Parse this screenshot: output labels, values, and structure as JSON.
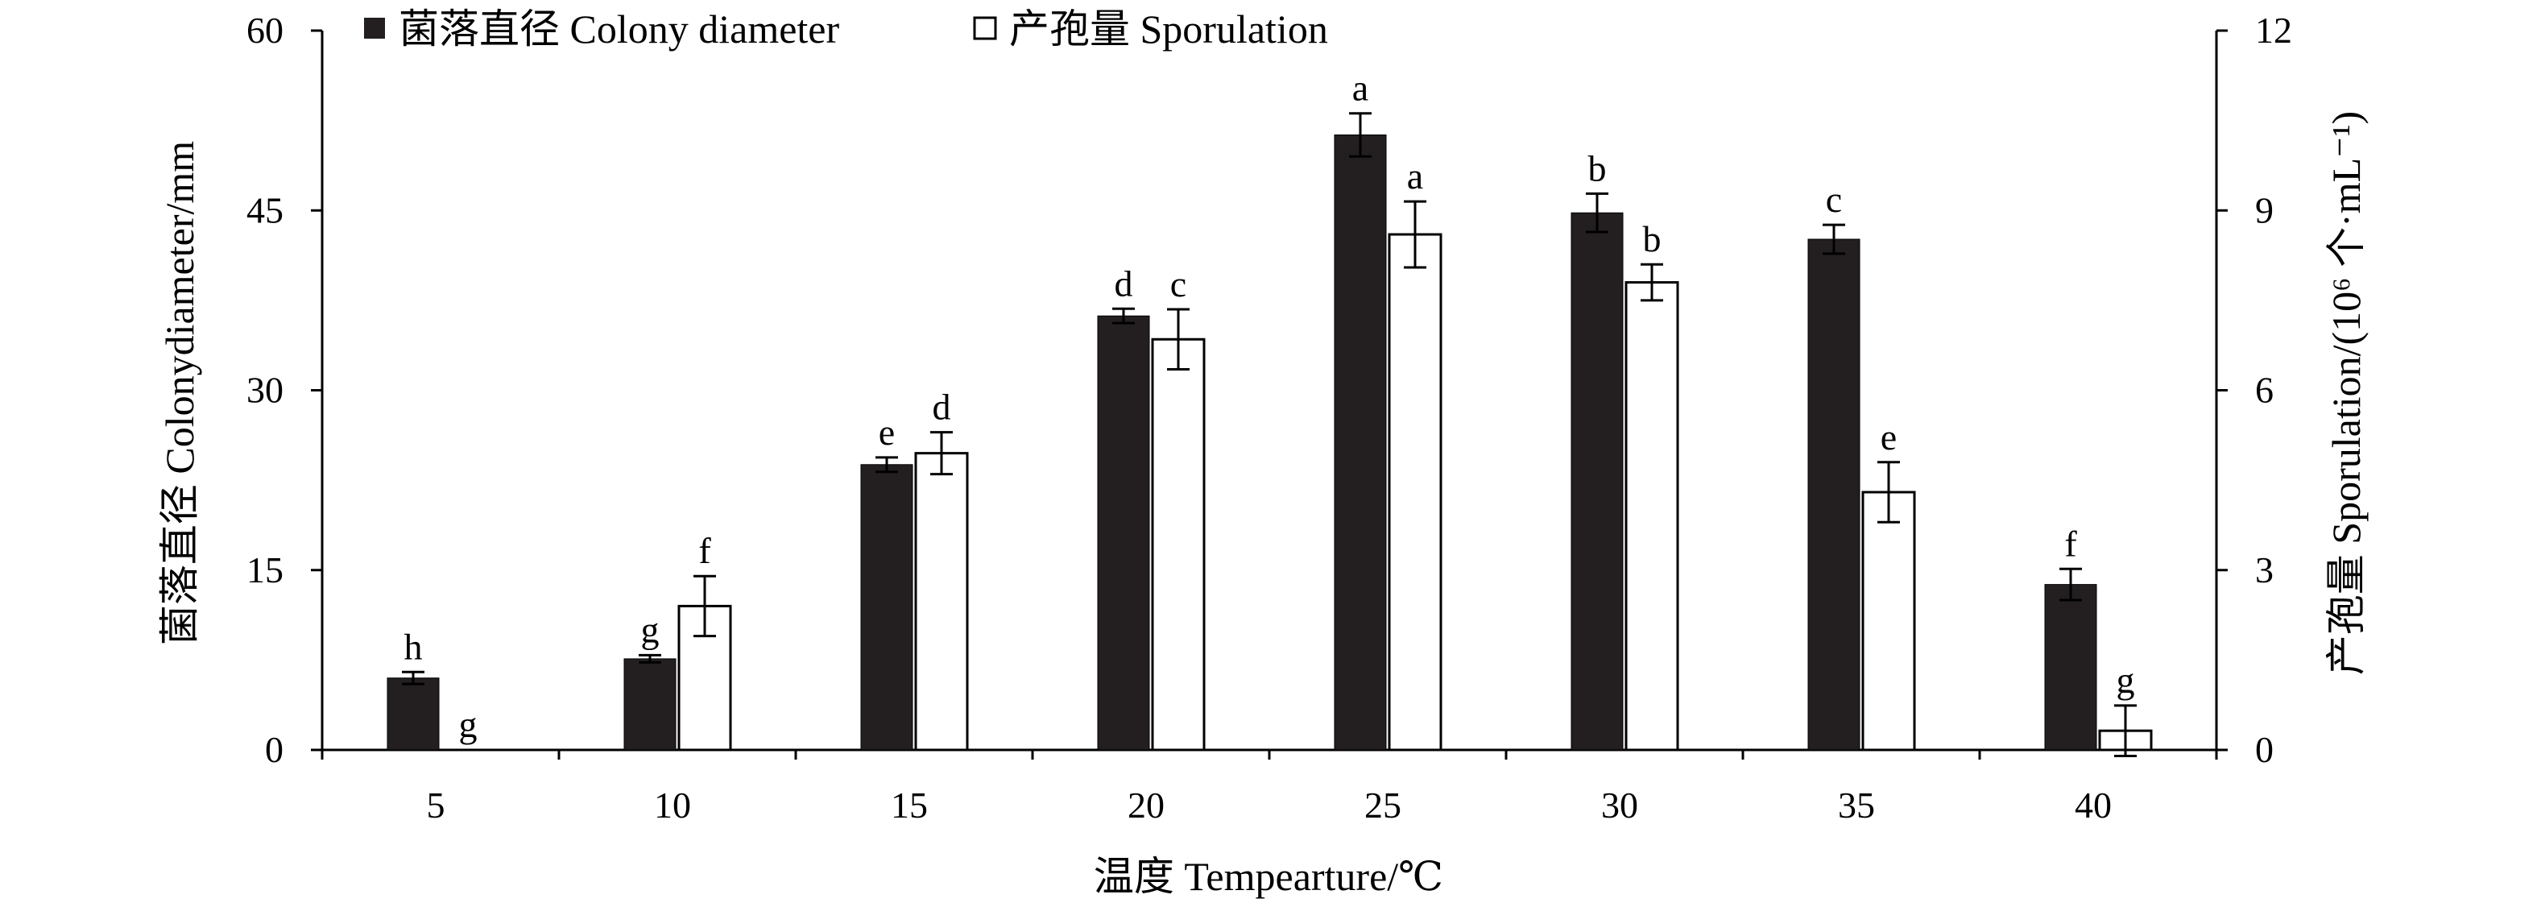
{
  "chart_data": {
    "type": "bar",
    "categories": [
      "5",
      "10",
      "15",
      "20",
      "25",
      "30",
      "35",
      "40"
    ],
    "xlabel": "温度 Tempearture/℃",
    "ylabel_left": "菌落直径 Colonydiameter/mm",
    "ylabel_right": "产孢量 Sporulation/(10⁶ 个·mL⁻¹)",
    "ylim_left": [
      0,
      60
    ],
    "ylim_right": [
      0,
      12
    ],
    "yticks_left": [
      "0",
      "15",
      "30",
      "45",
      "60"
    ],
    "yticks_right": [
      "0",
      "3",
      "6",
      "9",
      "12"
    ],
    "legend_position": "top-left",
    "series": [
      {
        "name": "菌落直径 Colony diameter",
        "axis": "left",
        "color": "#231f20",
        "values": [
          6.0,
          7.6,
          23.8,
          36.2,
          51.3,
          44.8,
          42.6,
          13.8
        ],
        "errors": [
          0.5,
          0.3,
          0.6,
          0.6,
          1.8,
          1.6,
          1.2,
          1.3
        ],
        "labels": [
          "h",
          "g",
          "e",
          "d",
          "a",
          "b",
          "c",
          "f"
        ]
      },
      {
        "name": "产孢量 Sporulation",
        "axis": "right",
        "color": "#ffffff",
        "values": [
          0.0,
          2.4,
          4.95,
          6.85,
          8.6,
          7.8,
          4.3,
          0.32
        ],
        "errors": [
          0.0,
          0.5,
          0.35,
          0.5,
          0.55,
          0.3,
          0.5,
          0.42
        ],
        "labels": [
          "g",
          "f",
          "d",
          "c",
          "a",
          "b",
          "e",
          "g"
        ]
      }
    ]
  }
}
